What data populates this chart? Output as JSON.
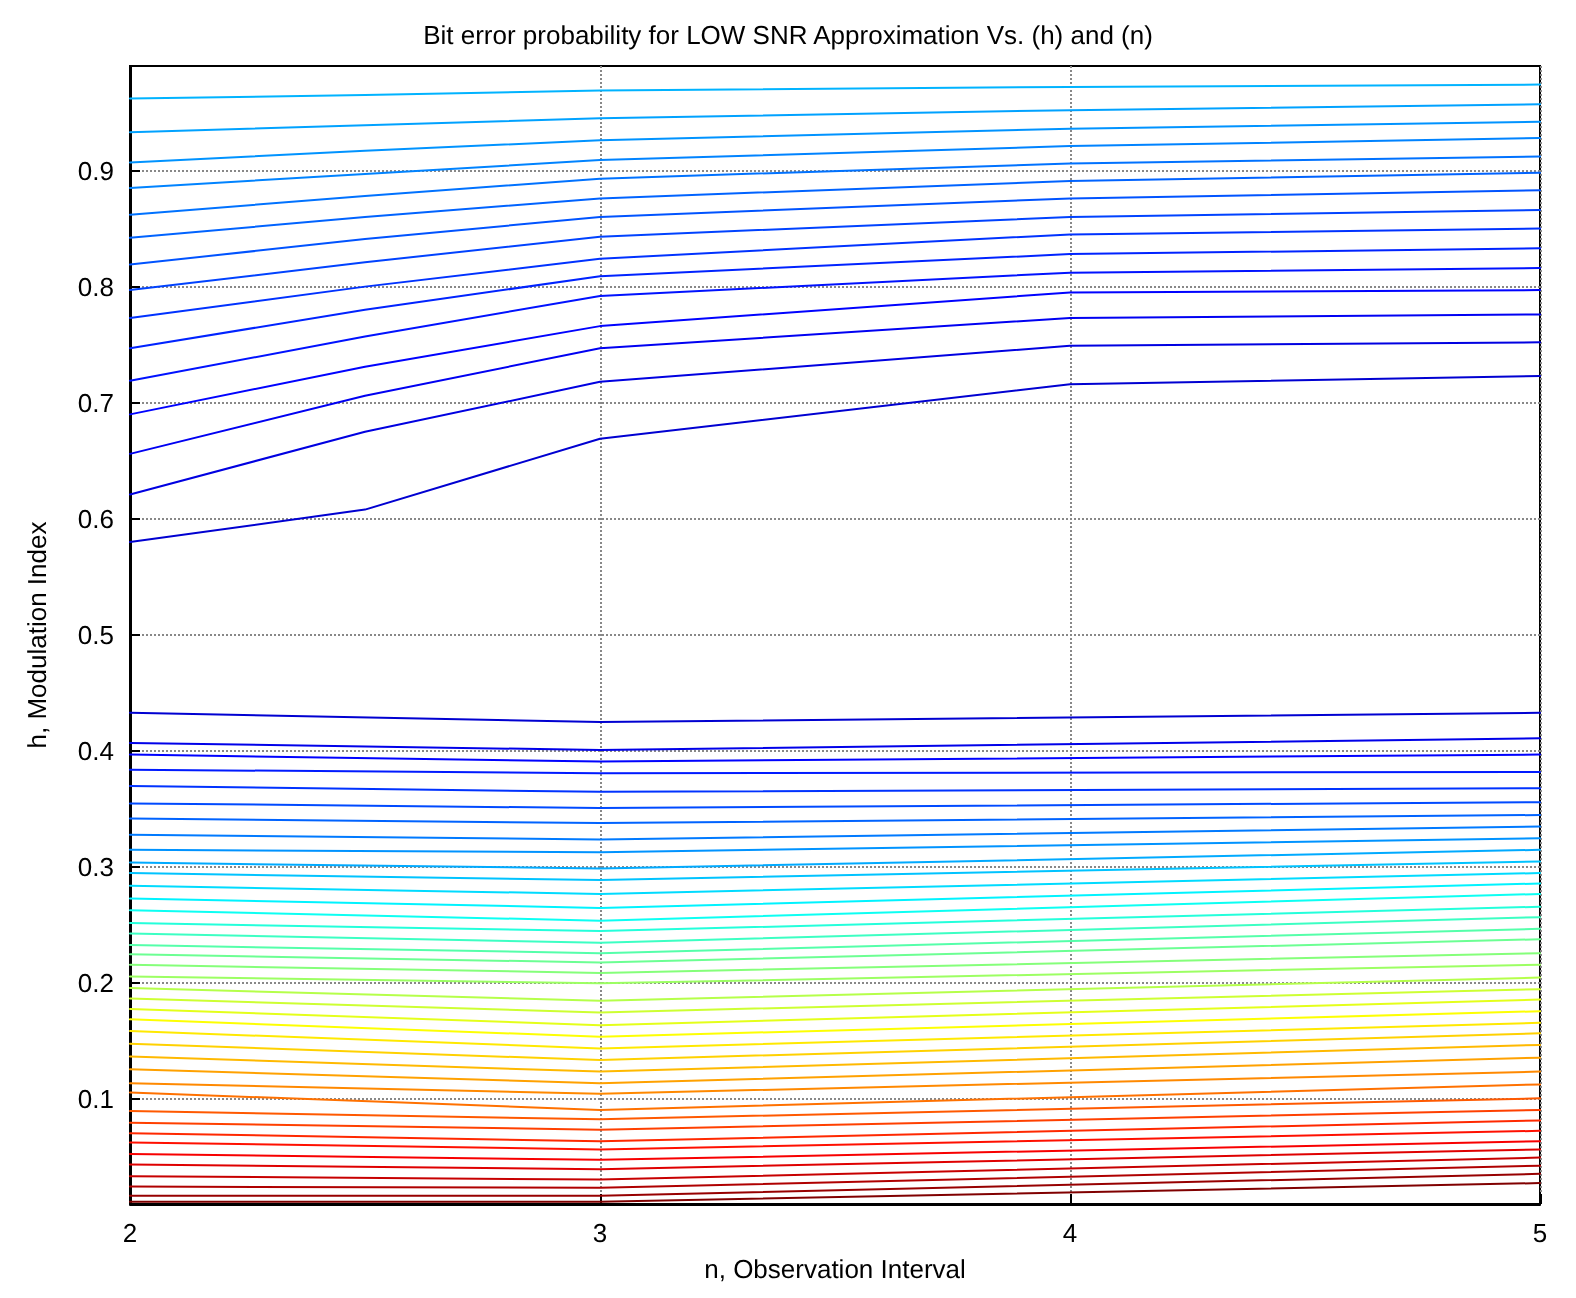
{
  "chart_data": {
    "type": "line",
    "title": "Bit error probability for LOW SNR Approximation Vs. (h) and (n)",
    "xlabel": "n, Observation Interval",
    "ylabel": "h, Modulation Index",
    "xlim": [
      2,
      5
    ],
    "xticks": [
      2,
      3,
      4,
      5
    ],
    "ylim": [
      0.01,
      0.99
    ],
    "yticks": [
      0.1,
      0.2,
      0.3,
      0.4,
      0.5,
      0.6,
      0.7,
      0.8,
      0.9
    ],
    "grid": true,
    "marker": "none",
    "line_style": "solid",
    "series": [
      {
        "color": "#00b3ff",
        "x": [
          2,
          2.5,
          3,
          4,
          5
        ],
        "values": [
          0.962,
          0.965,
          0.969,
          0.972,
          0.974
        ]
      },
      {
        "color": "#00a2ff",
        "x": [
          2,
          2.5,
          3,
          4,
          5
        ],
        "values": [
          0.933,
          0.939,
          0.945,
          0.952,
          0.957
        ]
      },
      {
        "color": "#0093ff",
        "x": [
          2,
          2.5,
          3,
          4,
          5
        ],
        "values": [
          0.907,
          0.917,
          0.926,
          0.936,
          0.942
        ]
      },
      {
        "color": "#0083ff",
        "x": [
          2,
          2.5,
          3,
          4,
          5
        ],
        "values": [
          0.885,
          0.897,
          0.909,
          0.921,
          0.928
        ]
      },
      {
        "color": "#0072ff",
        "x": [
          2,
          2.5,
          3,
          4,
          5
        ],
        "values": [
          0.862,
          0.878,
          0.893,
          0.906,
          0.912
        ]
      },
      {
        "color": "#0063ff",
        "x": [
          2,
          2.5,
          3,
          4,
          5
        ],
        "values": [
          0.842,
          0.86,
          0.876,
          0.891,
          0.898
        ]
      },
      {
        "color": "#0053ff",
        "x": [
          2,
          2.5,
          3,
          4,
          5
        ],
        "values": [
          0.819,
          0.841,
          0.86,
          0.876,
          0.883
        ]
      },
      {
        "color": "#0042ff",
        "x": [
          2,
          2.5,
          3,
          4,
          5
        ],
        "values": [
          0.797,
          0.821,
          0.843,
          0.86,
          0.866
        ]
      },
      {
        "color": "#0032ff",
        "x": [
          2,
          2.5,
          3,
          4,
          5
        ],
        "values": [
          0.773,
          0.8,
          0.824,
          0.845,
          0.85
        ]
      },
      {
        "color": "#0023ff",
        "x": [
          2,
          2.5,
          3,
          4,
          5
        ],
        "values": [
          0.747,
          0.78,
          0.809,
          0.828,
          0.833
        ]
      },
      {
        "color": "#0012ff",
        "x": [
          2,
          2.5,
          3,
          4,
          5
        ],
        "values": [
          0.719,
          0.757,
          0.792,
          0.812,
          0.816
        ]
      },
      {
        "color": "#0002ff",
        "x": [
          2,
          2.5,
          3,
          4,
          5
        ],
        "values": [
          0.69,
          0.731,
          0.766,
          0.795,
          0.797
        ]
      },
      {
        "color": "#0000f2",
        "x": [
          2,
          2.5,
          3,
          4,
          5
        ],
        "values": [
          0.656,
          0.706,
          0.747,
          0.773,
          0.776
        ]
      },
      {
        "color": "#0000e1",
        "x": [
          2,
          2.5,
          3,
          4,
          5
        ],
        "values": [
          0.621,
          0.675,
          0.718,
          0.749,
          0.752
        ]
      },
      {
        "color": "#0000d1",
        "x": [
          2,
          2.5,
          3,
          4,
          5
        ],
        "values": [
          0.58,
          0.608,
          0.669,
          0.716,
          0.723
        ]
      },
      {
        "color": "#0000d1",
        "x": [
          2,
          3,
          5
        ],
        "values": [
          0.433,
          0.425,
          0.433
        ]
      },
      {
        "color": "#0000e9",
        "x": [
          2,
          3,
          5
        ],
        "values": [
          0.407,
          0.401,
          0.411
        ]
      },
      {
        "color": "#0002ff",
        "x": [
          2,
          3,
          5
        ],
        "values": [
          0.397,
          0.391,
          0.397
        ]
      },
      {
        "color": "#001aff",
        "x": [
          2,
          3,
          5
        ],
        "values": [
          0.384,
          0.381,
          0.382
        ]
      },
      {
        "color": "#0032ff",
        "x": [
          2,
          3,
          5
        ],
        "values": [
          0.37,
          0.365,
          0.368
        ]
      },
      {
        "color": "#004aff",
        "x": [
          2,
          3,
          5
        ],
        "values": [
          0.355,
          0.351,
          0.356
        ]
      },
      {
        "color": "#0063ff",
        "x": [
          2,
          3,
          5
        ],
        "values": [
          0.342,
          0.338,
          0.345
        ]
      },
      {
        "color": "#007aff",
        "x": [
          2,
          3,
          5
        ],
        "values": [
          0.328,
          0.324,
          0.335
        ]
      },
      {
        "color": "#0093ff",
        "x": [
          2,
          3,
          5
        ],
        "values": [
          0.315,
          0.313,
          0.325
        ]
      },
      {
        "color": "#00aaff",
        "x": [
          2,
          3,
          5
        ],
        "values": [
          0.304,
          0.299,
          0.315
        ]
      },
      {
        "color": "#00c3ff",
        "x": [
          2,
          3,
          5
        ],
        "values": [
          0.295,
          0.289,
          0.305
        ]
      },
      {
        "color": "#00dbff",
        "x": [
          2,
          3,
          5
        ],
        "values": [
          0.284,
          0.277,
          0.295
        ]
      },
      {
        "color": "#00f3ff",
        "x": [
          2,
          3,
          5
        ],
        "values": [
          0.273,
          0.265,
          0.286
        ]
      },
      {
        "color": "#0cfff3",
        "x": [
          2,
          3,
          5
        ],
        "values": [
          0.263,
          0.254,
          0.277
        ]
      },
      {
        "color": "#24ffdb",
        "x": [
          2,
          3,
          5
        ],
        "values": [
          0.252,
          0.245,
          0.266
        ]
      },
      {
        "color": "#3cffc3",
        "x": [
          2,
          3,
          5
        ],
        "values": [
          0.243,
          0.235,
          0.257
        ]
      },
      {
        "color": "#55ffaa",
        "x": [
          2,
          3,
          5
        ],
        "values": [
          0.233,
          0.226,
          0.247
        ]
      },
      {
        "color": "#6cff93",
        "x": [
          2,
          3,
          5
        ],
        "values": [
          0.225,
          0.218,
          0.238
        ]
      },
      {
        "color": "#85ff7a",
        "x": [
          2,
          3,
          5
        ],
        "values": [
          0.216,
          0.209,
          0.226
        ]
      },
      {
        "color": "#9cff63",
        "x": [
          2,
          3,
          5
        ],
        "values": [
          0.206,
          0.2,
          0.216
        ]
      },
      {
        "color": "#b5ff4a",
        "x": [
          2,
          3,
          5
        ],
        "values": [
          0.196,
          0.185,
          0.205
        ]
      },
      {
        "color": "#cdff32",
        "x": [
          2,
          3,
          5
        ],
        "values": [
          0.187,
          0.175,
          0.195
        ]
      },
      {
        "color": "#e4ff1a",
        "x": [
          2,
          3,
          5
        ],
        "values": [
          0.178,
          0.164,
          0.186
        ]
      },
      {
        "color": "#fdff02",
        "x": [
          2,
          3,
          5
        ],
        "values": [
          0.169,
          0.154,
          0.176
        ]
      },
      {
        "color": "#ffe900",
        "x": [
          2,
          3,
          5
        ],
        "values": [
          0.159,
          0.144,
          0.166
        ]
      },
      {
        "color": "#ffd100",
        "x": [
          2,
          3,
          5
        ],
        "values": [
          0.148,
          0.134,
          0.157
        ]
      },
      {
        "color": "#ffb900",
        "x": [
          2,
          3,
          5
        ],
        "values": [
          0.137,
          0.124,
          0.147
        ]
      },
      {
        "color": "#ffa100",
        "x": [
          2,
          3,
          5
        ],
        "values": [
          0.126,
          0.114,
          0.136
        ]
      },
      {
        "color": "#ff8900",
        "x": [
          2,
          3,
          5
        ],
        "values": [
          0.114,
          0.105,
          0.124
        ]
      },
      {
        "color": "#ff7100",
        "x": [
          2,
          3,
          5
        ],
        "values": [
          0.106,
          0.091,
          0.113
        ]
      },
      {
        "color": "#ff5900",
        "x": [
          2,
          3,
          5
        ],
        "values": [
          0.09,
          0.083,
          0.101
        ]
      },
      {
        "color": "#ff4000",
        "x": [
          2,
          3,
          5
        ],
        "values": [
          0.08,
          0.074,
          0.091
        ]
      },
      {
        "color": "#ff2900",
        "x": [
          2,
          3,
          5
        ],
        "values": [
          0.071,
          0.064,
          0.082
        ]
      },
      {
        "color": "#ff1000",
        "x": [
          2,
          3,
          5
        ],
        "values": [
          0.063,
          0.057,
          0.073
        ]
      },
      {
        "color": "#f80000",
        "x": [
          2,
          3,
          5
        ],
        "values": [
          0.053,
          0.048,
          0.064
        ]
      },
      {
        "color": "#df0000",
        "x": [
          2,
          3,
          5
        ],
        "values": [
          0.044,
          0.04,
          0.057
        ]
      },
      {
        "color": "#c70000",
        "x": [
          2,
          3,
          5
        ],
        "values": [
          0.034,
          0.031,
          0.05
        ]
      },
      {
        "color": "#af0000",
        "x": [
          2,
          3,
          5
        ],
        "values": [
          0.025,
          0.024,
          0.043
        ]
      },
      {
        "color": "#970000",
        "x": [
          2,
          3,
          5
        ],
        "values": [
          0.017,
          0.017,
          0.036
        ]
      },
      {
        "color": "#800000",
        "x": [
          2,
          3,
          5
        ],
        "values": [
          0.012,
          0.012,
          0.028
        ]
      }
    ]
  }
}
